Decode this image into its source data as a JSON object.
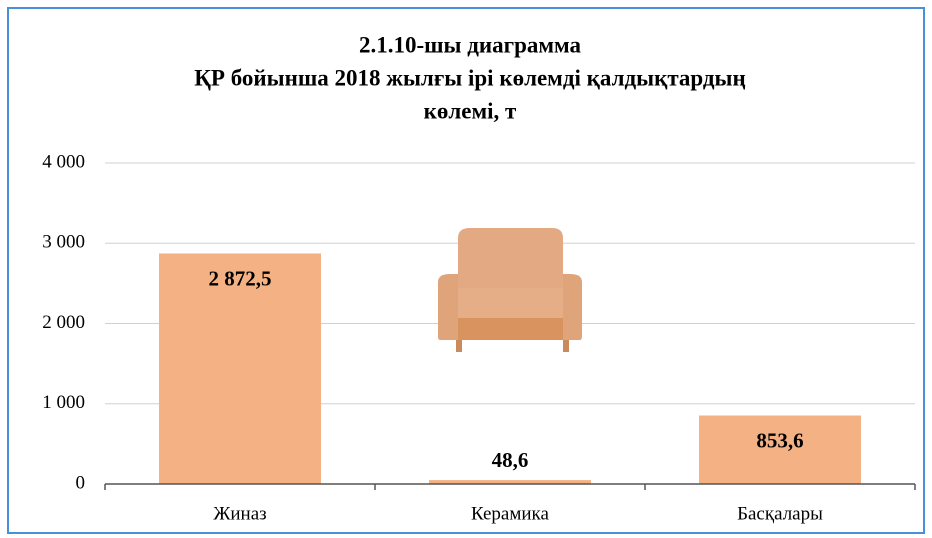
{
  "chart_data": {
    "type": "bar",
    "title": [
      "2.1.10-шы диаграмма",
      "ҚР бойынша 2018 жылғы ірі көлемді қалдықтардың",
      "көлемі, т"
    ],
    "categories": [
      "Жиназ",
      "Керамика",
      "Басқалары"
    ],
    "values": [
      2872.5,
      48.6,
      853.6
    ],
    "value_labels": [
      "2 872,5",
      "48,6",
      "853,6"
    ],
    "color": "#f4b183",
    "ylim": [
      0,
      4000
    ],
    "yticks": [
      0,
      {
        "value": 1000,
        "label": "1 000"
      },
      {
        "value": 2000,
        "label": "2 000"
      },
      {
        "value": 3000,
        "label": "3 000"
      },
      {
        "value": 4000,
        "label": "4 000"
      }
    ],
    "grid": true
  }
}
